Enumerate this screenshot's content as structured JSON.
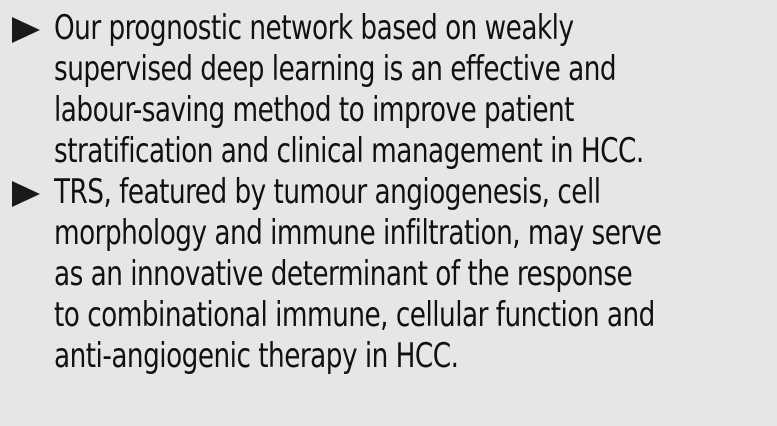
{
  "bullets": [
    {
      "marker_icon": "right-triangle-icon",
      "lines": [
        "Our prognostic network based on weakly",
        "supervised deep learning is an effective and",
        "labour-saving method to improve patient",
        "stratification and clinical management in HCC."
      ]
    },
    {
      "marker_icon": "right-triangle-icon",
      "lines": [
        "TRS, featured by tumour angiogenesis, cell",
        "morphology and immune infiltration, may serve",
        "as an innovative determinant of the response",
        "to combinational immune, cellular function and",
        "anti-angiogenic therapy in HCC."
      ]
    }
  ],
  "colors": {
    "background": "#e6e6e6",
    "text": "#111111",
    "marker": "#1a1a1a"
  }
}
